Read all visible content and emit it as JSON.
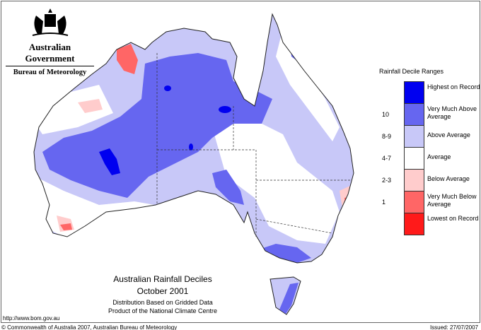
{
  "header": {
    "government": "Australian Government",
    "bureau": "Bureau of Meteorology"
  },
  "legend": {
    "title": "Rainfall Decile Ranges",
    "items": [
      {
        "range": "",
        "label": "Highest on Record",
        "color": "#0000f0"
      },
      {
        "range": "10",
        "label": "Very Much Above Average",
        "color": "#6666f0"
      },
      {
        "range": "8-9",
        "label": "Above Average",
        "color": "#c8c8f8"
      },
      {
        "range": "4-7",
        "label": "Average",
        "color": "#ffffff"
      },
      {
        "range": "2-3",
        "label": "Below Average",
        "color": "#ffcccc"
      },
      {
        "range": "1",
        "label": "Very Much Below Average",
        "color": "#ff6666"
      },
      {
        "range": "",
        "label": "Lowest on Record",
        "color": "#ff1a1a"
      }
    ]
  },
  "map": {
    "title": "Australian Rainfall Deciles",
    "period": "October 2001",
    "note1": "Distribution Based on Gridded Data",
    "note2": "Product of the National Climate Centre"
  },
  "footer": {
    "url": "http://www.bom.gov.au",
    "copyright": "© Commonwealth of Australia 2007, Australian Bureau of Meteorology",
    "issued": "Issued: 27/07/2007"
  }
}
